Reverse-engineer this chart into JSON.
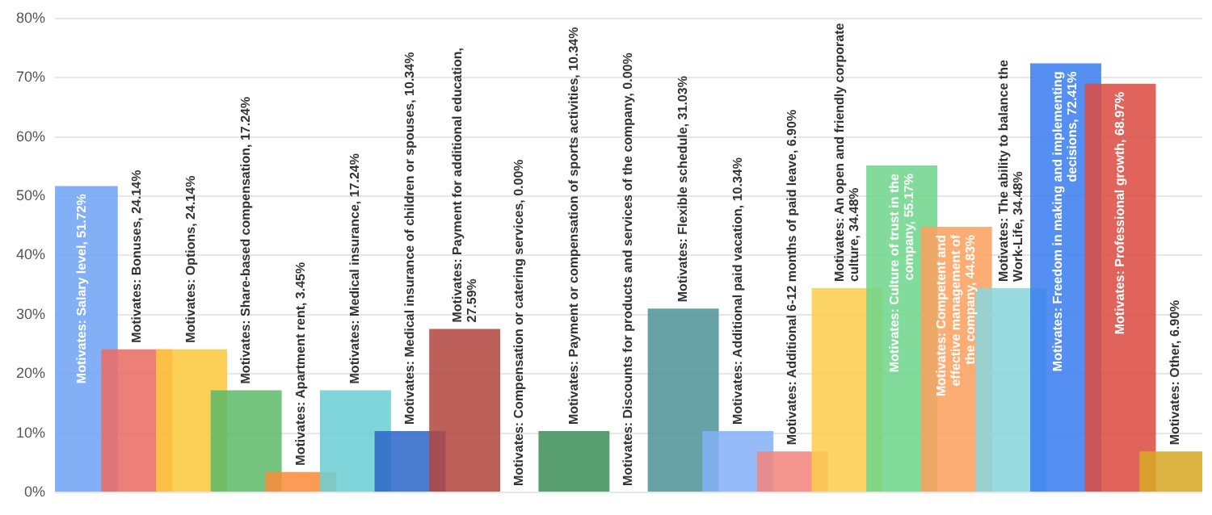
{
  "chart_data": {
    "type": "bar",
    "categories": [
      null,
      null,
      null,
      null,
      null,
      null,
      null,
      null,
      null,
      null,
      null,
      null,
      null,
      null,
      null,
      null,
      null,
      null,
      null,
      null,
      null
    ],
    "values": [
      51.72,
      24.14,
      24.14,
      17.24,
      3.45,
      17.24,
      10.34,
      27.59,
      0,
      10.34,
      0,
      31.03,
      10.34,
      6.9,
      34.48,
      55.17,
      44.83,
      34.48,
      72.41,
      68.97,
      6.9
    ],
    "colors": [
      "#6fa3f5",
      "#ea6b64",
      "#fbc93d",
      "#5fba6a",
      "#fb8c3c",
      "#6dcfd5",
      "#2f68c8",
      "#b24840",
      "#999999",
      "#3f8f5a",
      "#999999",
      "#4f9498",
      "#86b1f8",
      "#f2867e",
      "#fbcd4f",
      "#6fd58a",
      "#fca05f",
      "#88d7dd",
      "#3a7eef",
      "#db4b43",
      "#d8a726"
    ],
    "value_labels": [
      "Motivates: Salary level, 51.72%",
      "Motivates: Bonuses, 24.14%",
      "Motivates: Options, 24.14%",
      "Motivates: Share-based compensation, 17.24%",
      "Motivates: Apartment rent, 3.45%",
      "Motivates: Medical insurance, 17.24%",
      "Motivates: Medical insurance of children or spouses, 10.34%",
      "Motivates: Payment for additional education, 27.59%",
      "Motivates: Compensation or catering services, 0.00%",
      "Motivates: Payment or compensation of sports activities, 10.34%",
      "Motivates: Discounts for products and services of the company, 0.00%",
      "Motivates: Flexible schedule, 31.03%",
      "Motivates: Additional paid vacation, 10.34%",
      "Motivates: Additional 6-12 months of paid leave, 6.90%",
      "Motivates: An open and friendly corporate culture, 34.48%",
      "Motivates: Culture of trust in the company, 55.17%",
      "Motivates: Competent and effective management of the company, 44.83%",
      "Motivates: The ability to balance the Work-Life, 34.48%",
      "Motivates: Freedom in making and implementing decisions, 72.41%",
      "Motivates: Professional growth, 68.97%",
      "Motivates: Other, 6.90%"
    ],
    "ylim": [
      0,
      80
    ],
    "yticks": [
      {
        "value": 0,
        "label": "0%"
      },
      {
        "value": 10,
        "label": "10%"
      },
      {
        "value": 20,
        "label": "20%"
      },
      {
        "value": 30,
        "label": "30%"
      },
      {
        "value": 40,
        "label": "40%"
      },
      {
        "value": 50,
        "label": "50%"
      },
      {
        "value": 60,
        "label": "60%"
      },
      {
        "value": 70,
        "label": "70%"
      },
      {
        "value": 80,
        "label": "80%"
      }
    ],
    "grid": "y",
    "legend": false
  }
}
